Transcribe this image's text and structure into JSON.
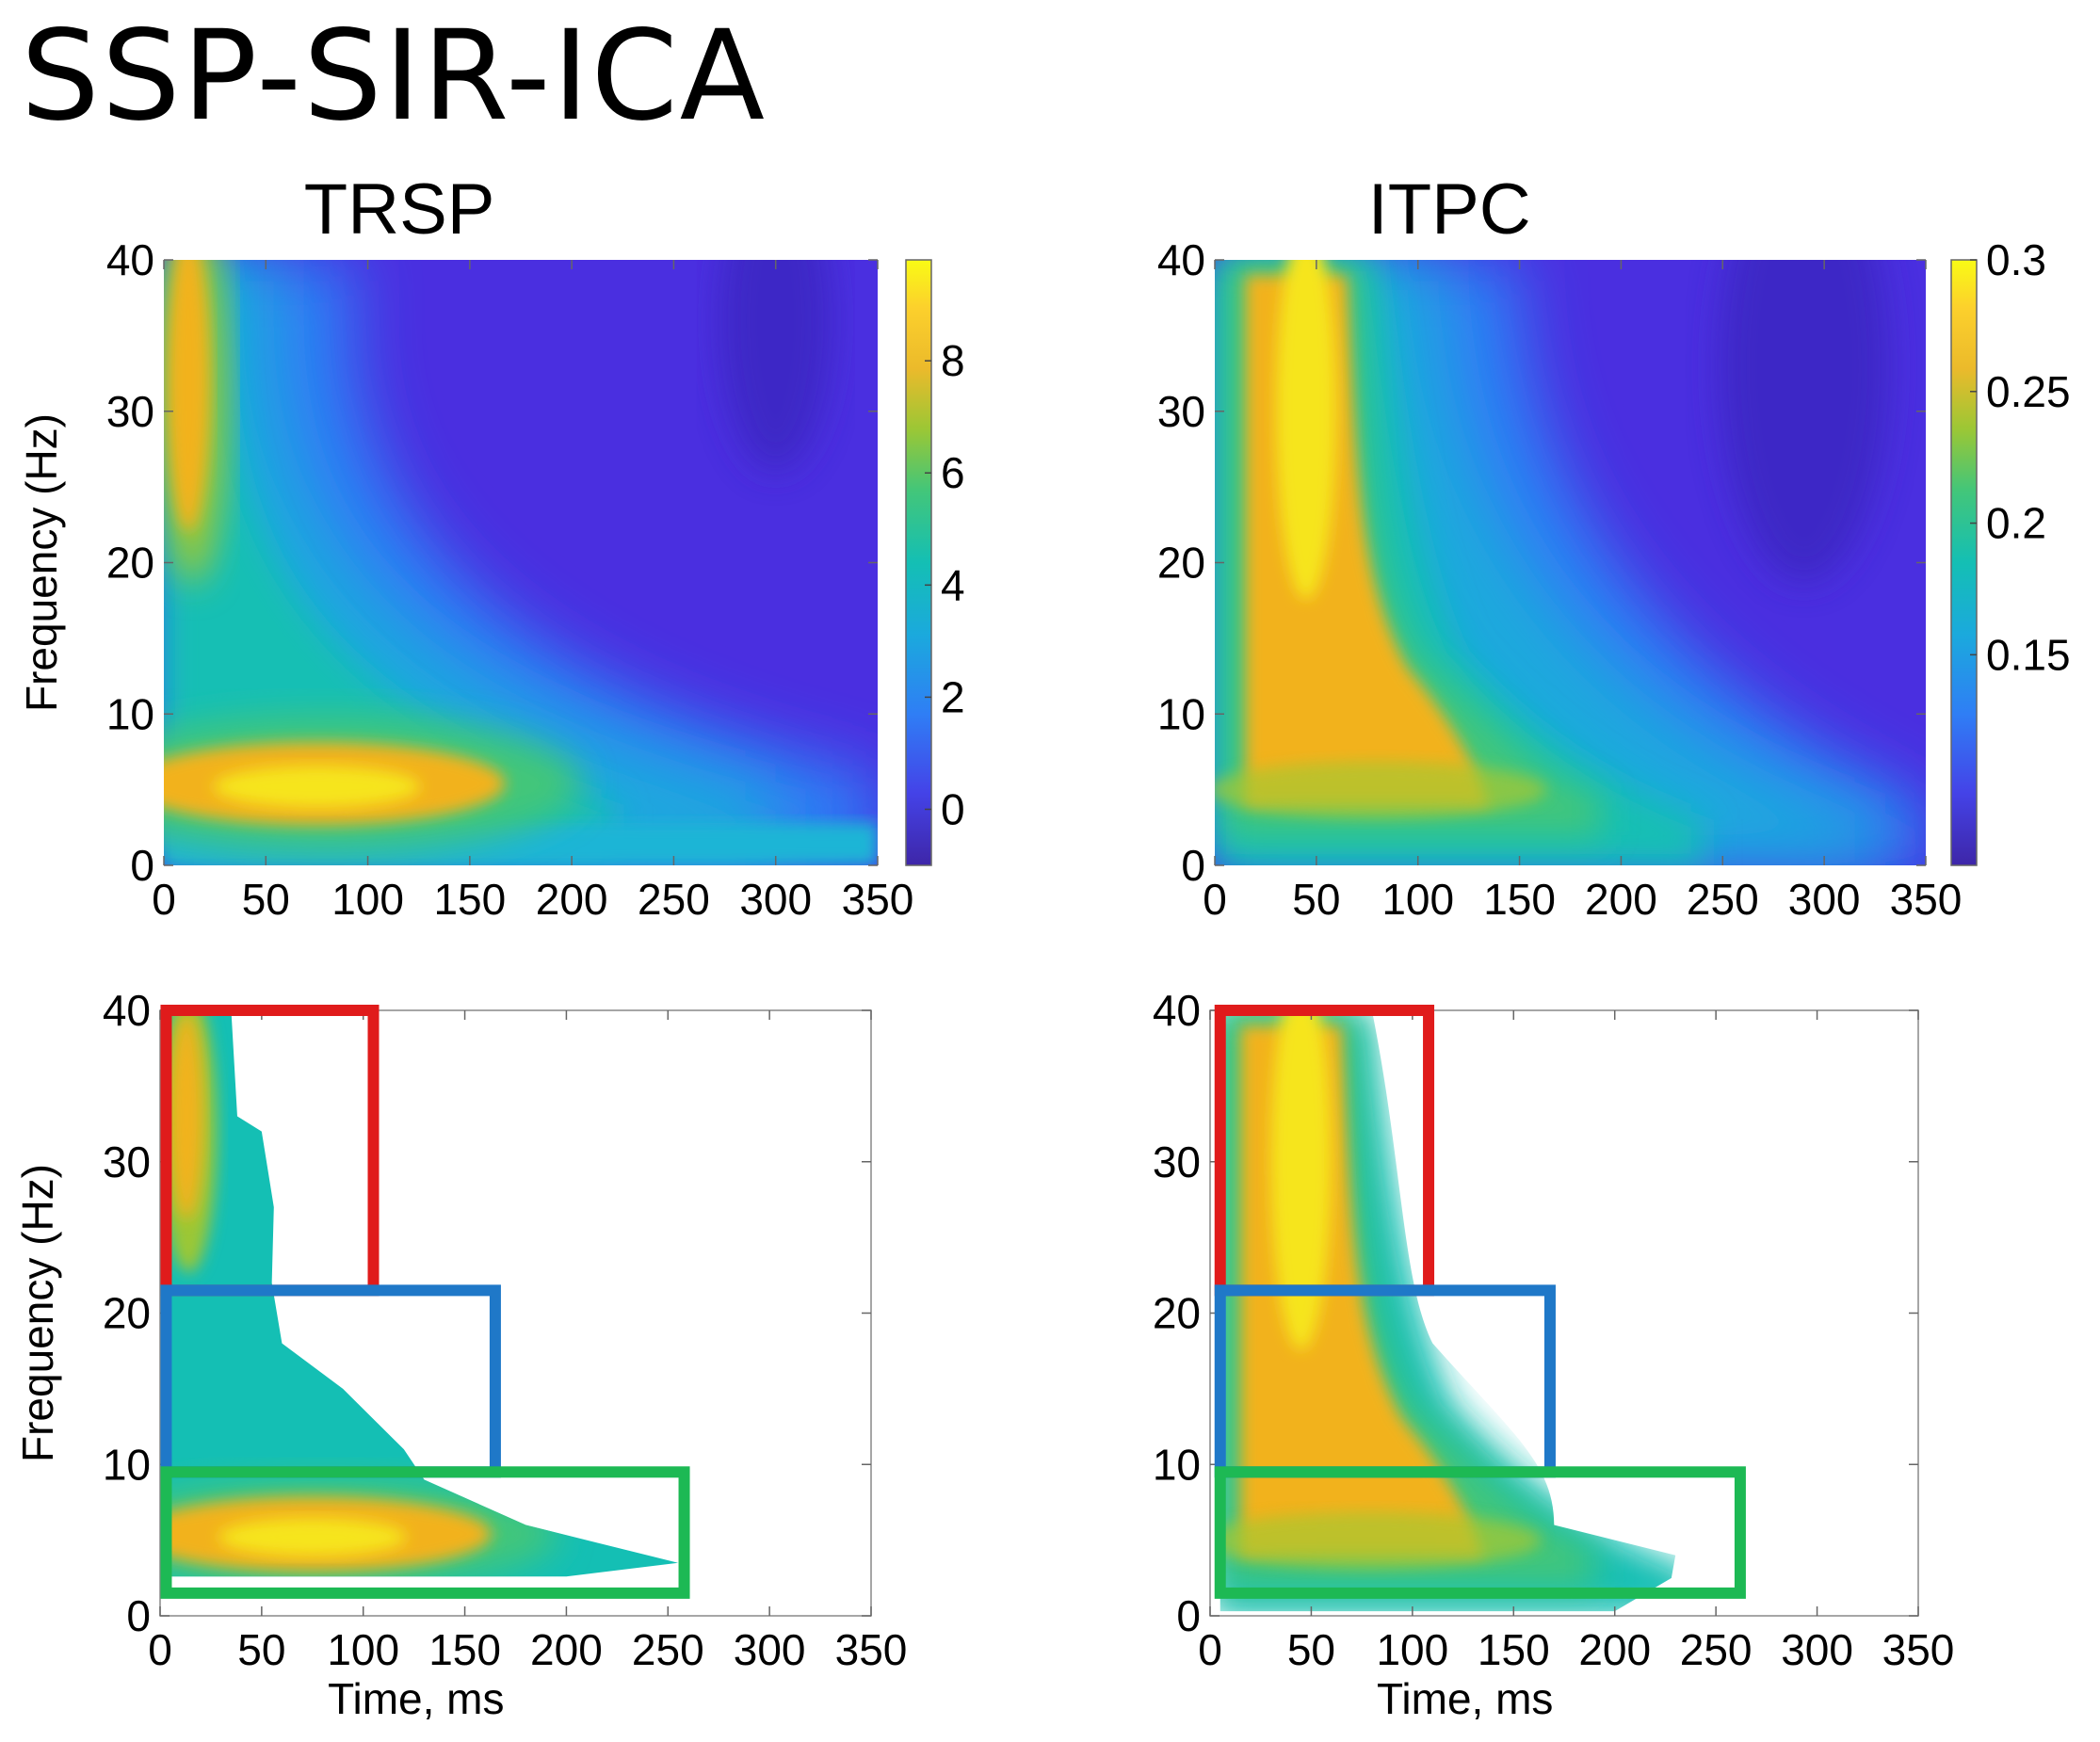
{
  "figure": {
    "title": "SSP-SIR-ICA"
  },
  "chart_data": [
    {
      "type": "heatmap",
      "panel": "top-left",
      "title": "TRSP",
      "xlabel": "",
      "ylabel": "Frequency (Hz)",
      "x_ticks": [
        "0",
        "50",
        "100",
        "150",
        "200",
        "250",
        "300",
        "350"
      ],
      "y_ticks": [
        "0",
        "10",
        "20",
        "30",
        "40"
      ],
      "xlim": [
        0,
        350
      ],
      "ylim": [
        0,
        40
      ],
      "colorbar": {
        "ticks": [
          "0",
          "2",
          "4",
          "6",
          "8"
        ],
        "range": [
          -1,
          9.8
        ],
        "colormap": "parula"
      },
      "regions": [
        {
          "label": "low-frequency peak",
          "time_ms": [
            0,
            220
          ],
          "freq_hz": [
            3,
            9
          ],
          "peak": 9.5
        },
        {
          "label": "high-frequency early peak",
          "time_ms": [
            0,
            25
          ],
          "freq_hz": [
            20,
            40
          ],
          "peak": 8
        }
      ]
    },
    {
      "type": "heatmap",
      "panel": "top-right",
      "title": "ITPC",
      "xlabel": "",
      "ylabel": "",
      "x_ticks": [
        "0",
        "50",
        "100",
        "150",
        "200",
        "250",
        "300",
        "350"
      ],
      "y_ticks": [
        "0",
        "10",
        "20",
        "30",
        "40"
      ],
      "xlim": [
        0,
        350
      ],
      "ylim": [
        0,
        40
      ],
      "colorbar": {
        "ticks": [
          "0.15",
          "0.2",
          "0.25",
          "0.3"
        ],
        "range": [
          0.07,
          0.3
        ],
        "colormap": "parula"
      },
      "regions": [
        {
          "label": "broad early phase-locking",
          "time_ms": [
            10,
            150
          ],
          "freq_hz": [
            3,
            40
          ],
          "peak": 0.3
        }
      ]
    },
    {
      "type": "heatmap",
      "panel": "bottom-left",
      "title": "",
      "xlabel": "Time, ms",
      "ylabel": "Frequency (Hz)",
      "x_ticks": [
        "0",
        "50",
        "100",
        "150",
        "200",
        "250",
        "300",
        "350"
      ],
      "y_ticks": [
        "0",
        "10",
        "20",
        "30",
        "40"
      ],
      "xlim": [
        0,
        350
      ],
      "ylim": [
        0,
        40
      ],
      "masked": true,
      "boxes": [
        {
          "color": "#e01b1b",
          "time_ms": [
            3,
            105
          ],
          "freq_hz": [
            21.5,
            40
          ]
        },
        {
          "color": "#1f78c8",
          "time_ms": [
            3,
            165
          ],
          "freq_hz": [
            9.5,
            21.5
          ]
        },
        {
          "color": "#1db954",
          "time_ms": [
            3,
            258
          ],
          "freq_hz": [
            1.5,
            9.5
          ]
        }
      ]
    },
    {
      "type": "heatmap",
      "panel": "bottom-right",
      "title": "",
      "xlabel": "Time, ms",
      "ylabel": "",
      "x_ticks": [
        "0",
        "50",
        "100",
        "150",
        "200",
        "250",
        "300",
        "350"
      ],
      "y_ticks": [
        "0",
        "10",
        "20",
        "30",
        "40"
      ],
      "xlim": [
        0,
        350
      ],
      "ylim": [
        0,
        40
      ],
      "masked": true,
      "boxes": [
        {
          "color": "#e01b1b",
          "time_ms": [
            5,
            108
          ],
          "freq_hz": [
            21.5,
            40
          ]
        },
        {
          "color": "#1f78c8",
          "time_ms": [
            5,
            168
          ],
          "freq_hz": [
            9.5,
            21.5
          ]
        },
        {
          "color": "#1db954",
          "time_ms": [
            5,
            262
          ],
          "freq_hz": [
            1.5,
            9.5
          ]
        }
      ]
    }
  ]
}
